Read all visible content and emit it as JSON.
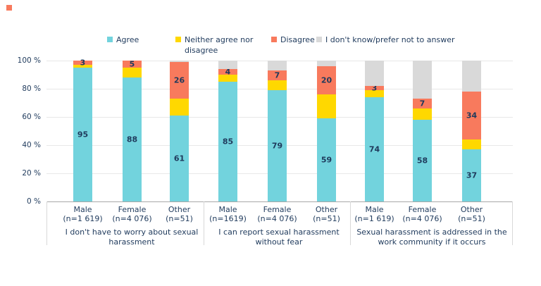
{
  "colors": {
    "agree": "#72D3DD",
    "neither": "#FFD800",
    "disagree": "#F87A5D",
    "dontknow": "#D9D9D9",
    "text": "#1F3A5C",
    "gridline": "#E8E8E8",
    "axis_line": "#A8A8A8",
    "separator": "#D9D9D9",
    "corner_mark": "#F87A5D"
  },
  "legend": {
    "items": [
      {
        "label": "Agree",
        "color": "#72D3DD"
      },
      {
        "label": "Neither agree nor disagree",
        "color": "#FFD800"
      },
      {
        "label": "Disagree",
        "color": "#F87A5D"
      },
      {
        "label": "I don't know/prefer not to answer",
        "color": "#D9D9D9"
      }
    ]
  },
  "y_axis": {
    "tick_labels": [
      "100 %",
      "80 %",
      "60 %",
      "40 %",
      "20 %",
      "0 %"
    ]
  },
  "chart_data": {
    "type": "bar",
    "stacked": true,
    "orientation": "vertical",
    "ylim": [
      0,
      100
    ],
    "grid": true,
    "legend_position": "top",
    "series_names": [
      "Agree",
      "Neither agree nor disagree",
      "Disagree",
      "I don't know/prefer not to answer"
    ],
    "series_colors": [
      "#72D3DD",
      "#FFD800",
      "#F87A5D",
      "#D9D9D9"
    ],
    "labeled_series": [
      "Agree",
      "Disagree"
    ],
    "groups": [
      {
        "caption": "I don't have to worry about sexual harassment",
        "bars": [
          {
            "category": "Male",
            "n_label": "(n=1 619)",
            "values": [
              95,
              2,
              3,
              0
            ],
            "shown_labels": {
              "agree": "95",
              "disagree": "3"
            }
          },
          {
            "category": "Female",
            "n_label": "(n=4 076)",
            "values": [
              88,
              7,
              5,
              0
            ],
            "shown_labels": {
              "agree": "88",
              "disagree": "5"
            }
          },
          {
            "category": "Other",
            "n_label": "(n=51)",
            "values": [
              61,
              12,
              26,
              1
            ],
            "shown_labels": {
              "agree": "61",
              "disagree": "26"
            }
          }
        ]
      },
      {
        "caption": "I can report sexual harassment without fear",
        "bars": [
          {
            "category": "Male",
            "n_label": "(n=1619)",
            "values": [
              85,
              5,
              4,
              6
            ],
            "shown_labels": {
              "agree": "85",
              "disagree": "4"
            }
          },
          {
            "category": "Female",
            "n_label": "(n=4 076)",
            "values": [
              79,
              7,
              7,
              7
            ],
            "shown_labels": {
              "agree": "79",
              "disagree": "7"
            }
          },
          {
            "category": "Other",
            "n_label": "(n=51)",
            "values": [
              59,
              17,
              20,
              4
            ],
            "shown_labels": {
              "agree": "59",
              "disagree": "20"
            }
          }
        ]
      },
      {
        "caption": "Sexual harassment is addressed in the work community if it occurs",
        "bars": [
          {
            "category": "Male",
            "n_label": "(n=1 619)",
            "values": [
              74,
              5,
              3,
              18
            ],
            "shown_labels": {
              "agree": "74",
              "disagree": "3"
            }
          },
          {
            "category": "Female",
            "n_label": "(n=4 076)",
            "values": [
              58,
              8,
              7,
              27
            ],
            "shown_labels": {
              "agree": "58",
              "disagree": "7"
            }
          },
          {
            "category": "Other",
            "n_label": "(n=51)",
            "values": [
              37,
              7,
              34,
              22
            ],
            "shown_labels": {
              "agree": "37",
              "disagree": "34"
            }
          }
        ]
      }
    ]
  }
}
